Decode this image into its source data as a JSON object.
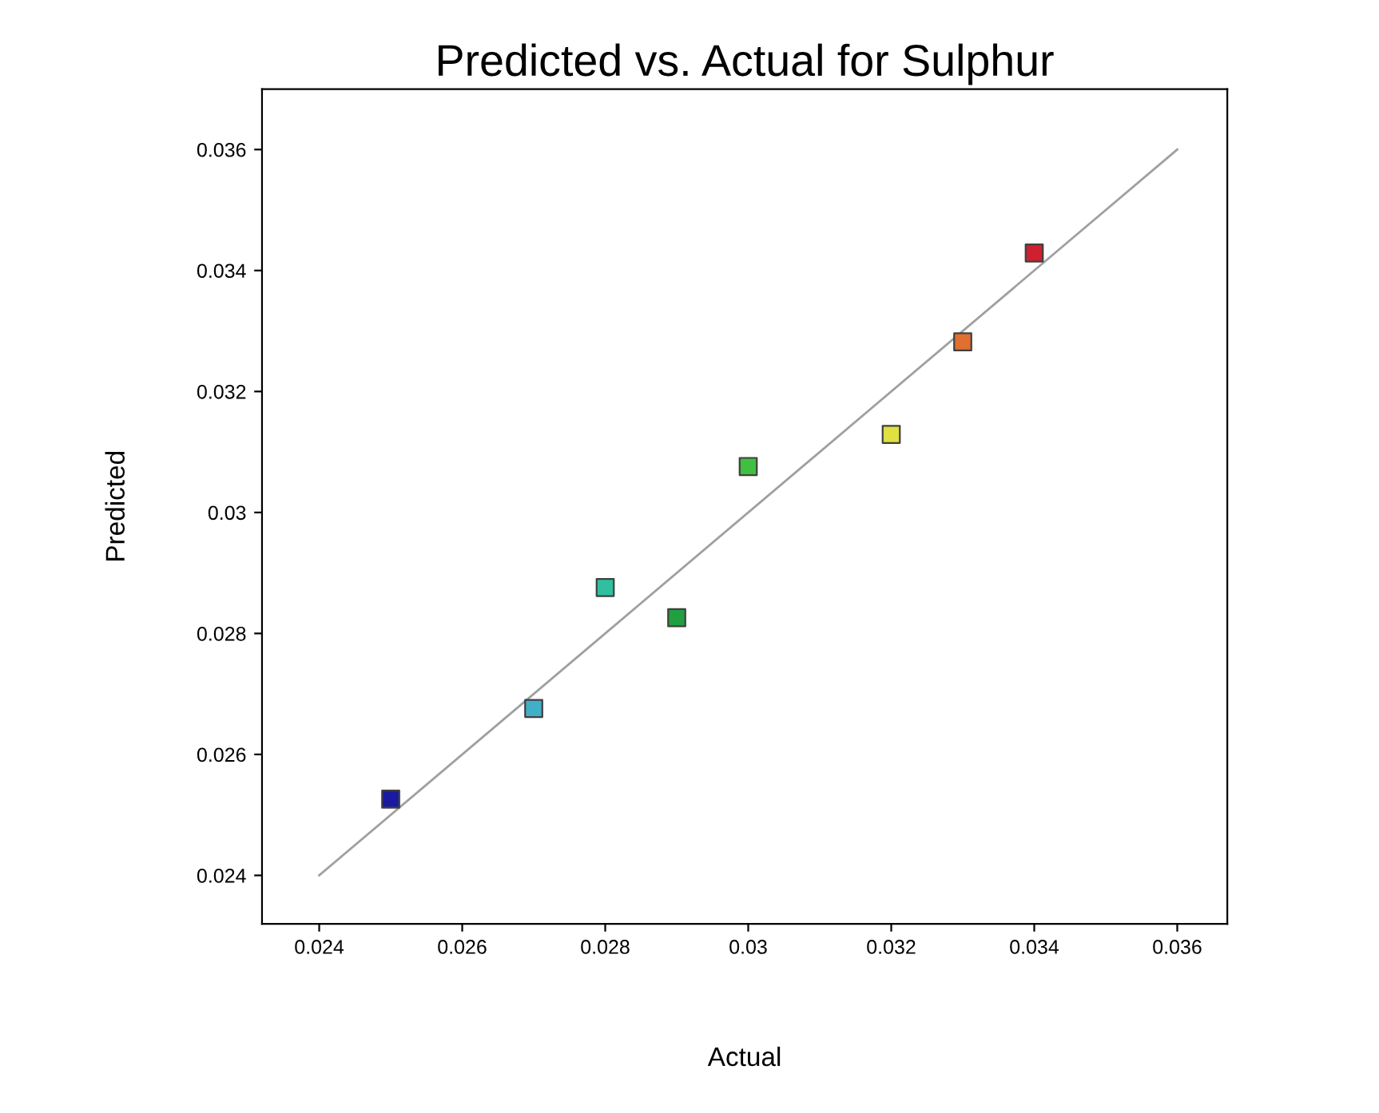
{
  "chart_data": {
    "type": "scatter",
    "title": "Predicted vs. Actual for Sulphur",
    "xlabel": "Actual",
    "ylabel": "Predicted",
    "x": [
      0.025,
      0.027,
      0.028,
      0.029,
      0.03,
      0.032,
      0.033,
      0.034
    ],
    "series": [
      {
        "type": "line",
        "x": [
          0.024,
          0.036
        ],
        "values": [
          0.024,
          0.036
        ],
        "color": "#a0a0a0",
        "marker": "none"
      },
      {
        "values": [
          0.02526,
          0.02676,
          0.02876,
          0.02826,
          0.03076,
          0.03129,
          0.03282,
          0.03429
        ],
        "colors": [
          "#1a1aa0",
          "#40b0c8",
          "#30c0a0",
          "#20a040",
          "#40c040",
          "#e0e040",
          "#e07030",
          "#d02030"
        ],
        "marker": "square"
      }
    ],
    "xlim": [
      0.0232,
      0.0367
    ],
    "ylim": [
      0.0232,
      0.037
    ],
    "xticks": [
      0.024,
      0.026,
      0.028,
      0.03,
      0.032,
      0.034,
      0.036
    ],
    "yticks": [
      0.024,
      0.026,
      0.028,
      0.03,
      0.032,
      0.034,
      0.036
    ],
    "grid": false,
    "legend": false
  }
}
